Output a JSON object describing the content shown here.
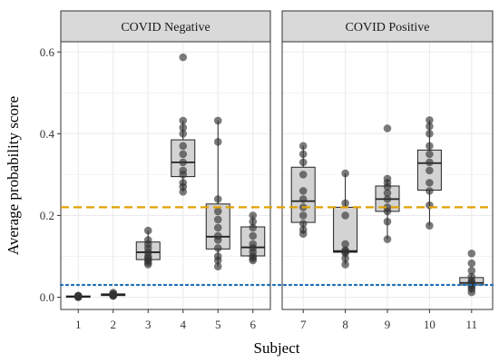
{
  "chart_data": {
    "type": "boxplot",
    "facets": [
      "COVID Negative",
      "COVID Positive"
    ],
    "xlabel": "Subject",
    "ylabel": "Average probability score",
    "ylim": [
      -0.03,
      0.625
    ],
    "yticks": [
      "0.0",
      "0.2",
      "0.4",
      "0.6"
    ],
    "grid": true,
    "reference_lines": [
      {
        "value": 0.22,
        "style": "dashed",
        "color": "#e0a100"
      },
      {
        "value": 0.03,
        "style": "dotted",
        "color": "#1f6fb5"
      }
    ],
    "colors": {
      "box_fill": "#d3d3d3",
      "box_stroke": "#222222",
      "point": "#333333",
      "strip_fill": "#d9d9d9",
      "grid": "#ebebeb"
    },
    "subjects": [
      {
        "subject": "1",
        "facet": 0,
        "q1": 0.0,
        "median": 0.001,
        "q3": 0.003,
        "whisker_low": 0.0,
        "whisker_high": 0.004,
        "points": [
          0.0,
          0.001,
          0.001,
          0.002,
          0.002,
          0.003,
          0.004
        ]
      },
      {
        "subject": "2",
        "facet": 0,
        "q1": 0.004,
        "median": 0.006,
        "q3": 0.008,
        "whisker_low": 0.003,
        "whisker_high": 0.011,
        "points": [
          0.003,
          0.004,
          0.005,
          0.006,
          0.007,
          0.008,
          0.011
        ]
      },
      {
        "subject": "3",
        "facet": 0,
        "q1": 0.092,
        "median": 0.11,
        "q3": 0.135,
        "whisker_low": 0.08,
        "whisker_high": 0.163,
        "points": [
          0.08,
          0.085,
          0.09,
          0.095,
          0.1,
          0.11,
          0.12,
          0.13,
          0.14,
          0.163
        ]
      },
      {
        "subject": "4",
        "facet": 0,
        "q1": 0.295,
        "median": 0.33,
        "q3": 0.385,
        "whisker_low": 0.258,
        "whisker_high": 0.432,
        "points": [
          0.258,
          0.27,
          0.28,
          0.3,
          0.31,
          0.33,
          0.35,
          0.37,
          0.4,
          0.415,
          0.432,
          0.587
        ]
      },
      {
        "subject": "5",
        "facet": 0,
        "q1": 0.118,
        "median": 0.148,
        "q3": 0.228,
        "whisker_low": 0.075,
        "whisker_high": 0.432,
        "points": [
          0.075,
          0.09,
          0.1,
          0.12,
          0.14,
          0.15,
          0.17,
          0.19,
          0.21,
          0.24,
          0.38,
          0.432
        ]
      },
      {
        "subject": "6",
        "facet": 0,
        "q1": 0.101,
        "median": 0.122,
        "q3": 0.172,
        "whisker_low": 0.09,
        "whisker_high": 0.2,
        "points": [
          0.09,
          0.095,
          0.1,
          0.11,
          0.12,
          0.13,
          0.15,
          0.17,
          0.185,
          0.2
        ]
      },
      {
        "subject": "7",
        "facet": 1,
        "q1": 0.183,
        "median": 0.235,
        "q3": 0.318,
        "whisker_low": 0.155,
        "whisker_high": 0.37,
        "points": [
          0.155,
          0.165,
          0.18,
          0.2,
          0.22,
          0.24,
          0.26,
          0.3,
          0.33,
          0.35,
          0.37
        ]
      },
      {
        "subject": "8",
        "facet": 1,
        "q1": 0.11,
        "median": 0.113,
        "q3": 0.22,
        "whisker_low": 0.08,
        "whisker_high": 0.303,
        "points": [
          0.08,
          0.095,
          0.108,
          0.112,
          0.115,
          0.13,
          0.2,
          0.23,
          0.303
        ]
      },
      {
        "subject": "9",
        "facet": 1,
        "q1": 0.21,
        "median": 0.24,
        "q3": 0.272,
        "whisker_low": 0.142,
        "whisker_high": 0.29,
        "points": [
          0.142,
          0.185,
          0.21,
          0.22,
          0.24,
          0.255,
          0.27,
          0.28,
          0.29,
          0.413
        ]
      },
      {
        "subject": "10",
        "facet": 1,
        "q1": 0.262,
        "median": 0.328,
        "q3": 0.36,
        "whisker_low": 0.175,
        "whisker_high": 0.433,
        "points": [
          0.175,
          0.225,
          0.26,
          0.28,
          0.31,
          0.33,
          0.35,
          0.37,
          0.4,
          0.418,
          0.433
        ]
      },
      {
        "subject": "11",
        "facet": 1,
        "q1": 0.03,
        "median": 0.035,
        "q3": 0.048,
        "whisker_low": 0.012,
        "whisker_high": 0.055,
        "points": [
          0.012,
          0.02,
          0.025,
          0.03,
          0.033,
          0.036,
          0.04,
          0.05,
          0.065,
          0.083,
          0.107
        ]
      }
    ]
  }
}
